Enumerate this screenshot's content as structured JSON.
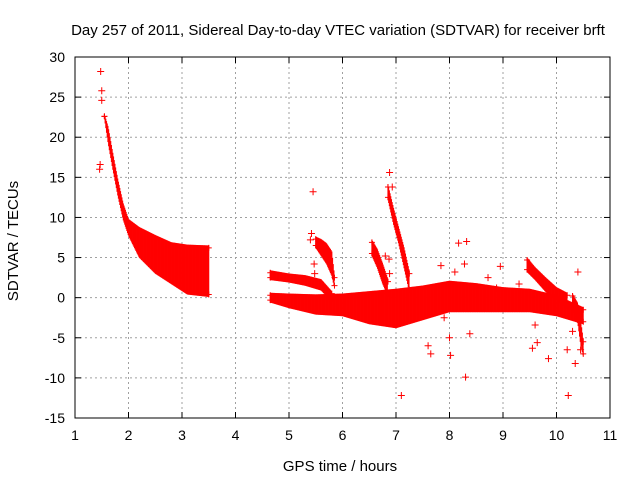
{
  "chart_data": {
    "type": "scatter",
    "title": "Day 257 of 2011, Sidereal Day-to-day VTEC variation (SDTVAR) for receiver brft",
    "xlabel": "GPS time / hours",
    "ylabel": "SDTVAR / TECUs",
    "xlim": [
      1,
      11
    ],
    "ylim": [
      -15,
      30
    ],
    "xticks": [
      1,
      2,
      3,
      4,
      5,
      6,
      7,
      8,
      9,
      10,
      11
    ],
    "yticks": [
      -15,
      -10,
      -5,
      0,
      5,
      10,
      15,
      20,
      25,
      30
    ],
    "grid": true,
    "marker": "+",
    "series_color": "#ff0000",
    "series": [
      {
        "name": "SDTVAR",
        "outliers": [
          [
            1.48,
            28.2
          ],
          [
            1.5,
            25.8
          ],
          [
            1.5,
            24.6
          ],
          [
            1.47,
            16.6
          ],
          [
            1.46,
            16.0
          ],
          [
            5.45,
            13.2
          ],
          [
            5.42,
            8.0
          ],
          [
            5.4,
            7.2
          ],
          [
            5.47,
            4.2
          ],
          [
            5.48,
            3.0
          ],
          [
            6.88,
            15.6
          ],
          [
            6.93,
            13.8
          ],
          [
            6.8,
            5.2
          ],
          [
            6.87,
            4.8
          ],
          [
            6.88,
            3.0
          ],
          [
            7.1,
            -12.2
          ],
          [
            7.6,
            -6.0
          ],
          [
            7.65,
            -7.0
          ],
          [
            7.84,
            4.0
          ],
          [
            7.9,
            -2.5
          ],
          [
            8.0,
            -5.0
          ],
          [
            8.02,
            -7.2
          ],
          [
            8.1,
            3.2
          ],
          [
            8.17,
            6.8
          ],
          [
            8.32,
            7.0
          ],
          [
            8.3,
            -9.9
          ],
          [
            8.38,
            -4.5
          ],
          [
            8.28,
            4.2
          ],
          [
            8.72,
            2.5
          ],
          [
            8.88,
            1.2
          ],
          [
            8.95,
            3.9
          ],
          [
            9.3,
            1.7
          ],
          [
            9.55,
            -6.3
          ],
          [
            9.6,
            -3.4
          ],
          [
            9.64,
            -5.6
          ],
          [
            9.85,
            -7.6
          ],
          [
            10.2,
            -6.5
          ],
          [
            10.22,
            -12.2
          ],
          [
            10.3,
            -4.2
          ],
          [
            10.35,
            -8.2
          ],
          [
            10.4,
            3.2
          ],
          [
            10.45,
            -6.5
          ]
        ],
        "bands": [
          {
            "x": [
              1.55,
              1.62,
              1.7,
              1.8,
              1.9,
              2.0,
              2.2,
              2.5,
              2.8,
              3.1,
              3.5
            ],
            "y_high": [
              22.6,
              21.0,
              18.0,
              14.5,
              11.5,
              9.5,
              8.5,
              7.5,
              6.6,
              6.3,
              6.2
            ],
            "y_low": [
              22.6,
              19.5,
              16.5,
              13.0,
              10.0,
              8.0,
              5.3,
              3.3,
              2.0,
              0.7,
              0.4
            ]
          },
          {
            "x": [
              4.65,
              5.0,
              5.5,
              6.0,
              6.5,
              7.0,
              7.5,
              8.0,
              8.5,
              9.0,
              9.5,
              10.0,
              10.5
            ],
            "y_high": [
              0.3,
              0.2,
              0.1,
              0.2,
              0.5,
              0.8,
              1.2,
              1.8,
              1.5,
              1.0,
              0.8,
              0.0,
              -1.5
            ],
            "y_low": [
              -0.3,
              -1.0,
              -1.8,
              -2.0,
              -3.0,
              -3.5,
              -2.5,
              -1.5,
              -1.5,
              -1.5,
              -1.5,
              -2.0,
              -3.0
            ]
          },
          {
            "x": [
              4.65,
              5.0,
              5.3,
              5.6,
              5.8
            ],
            "y_high": [
              3.1,
              2.7,
              2.5,
              2.0,
              0.5
            ],
            "y_low": [
              2.5,
              2.2,
              1.8,
              1.2,
              -0.2
            ]
          },
          {
            "x": [
              5.5,
              5.6,
              5.7,
              5.8,
              5.85
            ],
            "y_high": [
              7.3,
              7.0,
              6.5,
              5.5,
              2.5
            ],
            "y_low": [
              6.5,
              5.5,
              4.5,
              3.0,
              1.5
            ]
          },
          {
            "x": [
              6.55,
              6.65,
              6.75,
              6.85
            ],
            "y_high": [
              6.9,
              5.8,
              4.0,
              2.0
            ],
            "y_low": [
              5.5,
              4.0,
              2.0,
              0.5
            ]
          },
          {
            "x": [
              6.85,
              6.95,
              7.05,
              7.15,
              7.25
            ],
            "y_high": [
              13.8,
              11.0,
              8.5,
              6.0,
              3.0
            ],
            "y_low": [
              12.5,
              9.5,
              7.0,
              4.0,
              1.0
            ]
          },
          {
            "x": [
              9.45,
              9.6,
              9.8,
              10.0,
              10.2
            ],
            "y_high": [
              4.7,
              3.5,
              2.2,
              1.0,
              0.3
            ],
            "y_low": [
              3.5,
              2.5,
              1.0,
              0.0,
              -1.0
            ]
          },
          {
            "x": [
              10.3,
              10.4,
              10.45,
              10.5
            ],
            "y_high": [
              0.2,
              -1.0,
              -3.0,
              -5.5
            ],
            "y_low": [
              -1.0,
              -3.0,
              -5.5,
              -7.0
            ]
          }
        ]
      }
    ]
  }
}
